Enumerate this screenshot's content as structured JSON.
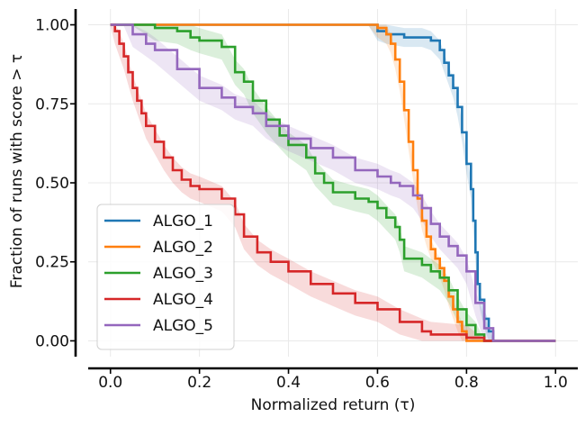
{
  "chart_data": {
    "type": "line",
    "title": "",
    "xlabel": "Normalized return (τ)",
    "ylabel": "Fraction of runs with score > τ",
    "xlim": [
      -0.05,
      1.05
    ],
    "ylim": [
      -0.05,
      1.05
    ],
    "xticks": [
      0.0,
      0.2,
      0.4,
      0.6,
      0.8,
      1.0
    ],
    "xtick_labels": [
      "0.0",
      "0.2",
      "0.4",
      "0.6",
      "0.8",
      "1.0"
    ],
    "yticks": [
      0.0,
      0.25,
      0.5,
      0.75,
      1.0
    ],
    "ytick_labels": [
      "0.00",
      "0.25",
      "0.50",
      "0.75",
      "1.00"
    ],
    "grid": true,
    "legend_position": "lower-left",
    "series": [
      {
        "name": "ALGO_1",
        "color": "#1f77b4",
        "x": [
          0.0,
          0.58,
          0.6,
          0.62,
          0.66,
          0.7,
          0.72,
          0.74,
          0.75,
          0.76,
          0.77,
          0.78,
          0.79,
          0.8,
          0.81,
          0.815,
          0.82,
          0.825,
          0.83,
          0.84,
          0.85,
          0.86,
          1.0
        ],
        "y": [
          1.0,
          1.0,
          0.98,
          0.97,
          0.96,
          0.96,
          0.95,
          0.92,
          0.88,
          0.84,
          0.8,
          0.74,
          0.66,
          0.56,
          0.48,
          0.38,
          0.28,
          0.18,
          0.13,
          0.07,
          0.03,
          0.0,
          0.0
        ],
        "band_halfwidth": 0.03
      },
      {
        "name": "ALGO_2",
        "color": "#ff7f0e",
        "x": [
          0.0,
          0.58,
          0.6,
          0.62,
          0.63,
          0.64,
          0.65,
          0.66,
          0.67,
          0.68,
          0.69,
          0.7,
          0.71,
          0.72,
          0.73,
          0.74,
          0.75,
          0.76,
          0.77,
          0.78,
          0.79,
          0.8,
          1.0
        ],
        "y": [
          1.0,
          1.0,
          0.99,
          0.97,
          0.94,
          0.89,
          0.82,
          0.73,
          0.63,
          0.54,
          0.45,
          0.38,
          0.33,
          0.29,
          0.26,
          0.23,
          0.19,
          0.14,
          0.1,
          0.06,
          0.03,
          0.0,
          0.0
        ],
        "band_halfwidth": 0.03
      },
      {
        "name": "ALGO_3",
        "color": "#2ca02c",
        "x": [
          0.0,
          0.05,
          0.1,
          0.15,
          0.18,
          0.2,
          0.25,
          0.28,
          0.3,
          0.32,
          0.35,
          0.38,
          0.4,
          0.44,
          0.46,
          0.48,
          0.5,
          0.55,
          0.58,
          0.6,
          0.62,
          0.64,
          0.65,
          0.66,
          0.7,
          0.72,
          0.74,
          0.76,
          0.78,
          0.8,
          0.82,
          0.84,
          1.0
        ],
        "y": [
          1.0,
          1.0,
          0.99,
          0.98,
          0.96,
          0.95,
          0.93,
          0.85,
          0.82,
          0.76,
          0.7,
          0.65,
          0.62,
          0.58,
          0.53,
          0.5,
          0.47,
          0.45,
          0.44,
          0.42,
          0.39,
          0.36,
          0.32,
          0.26,
          0.24,
          0.22,
          0.2,
          0.16,
          0.1,
          0.05,
          0.02,
          0.0,
          0.0
        ],
        "band_halfwidth": 0.04
      },
      {
        "name": "ALGO_4",
        "color": "#d62728",
        "x": [
          0.0,
          0.01,
          0.02,
          0.03,
          0.04,
          0.05,
          0.06,
          0.07,
          0.08,
          0.1,
          0.12,
          0.14,
          0.16,
          0.18,
          0.2,
          0.25,
          0.28,
          0.3,
          0.33,
          0.36,
          0.4,
          0.45,
          0.5,
          0.55,
          0.6,
          0.65,
          0.7,
          0.72,
          0.8,
          0.84,
          1.0
        ],
        "y": [
          1.0,
          0.98,
          0.94,
          0.9,
          0.85,
          0.8,
          0.76,
          0.72,
          0.68,
          0.63,
          0.58,
          0.54,
          0.51,
          0.49,
          0.48,
          0.45,
          0.4,
          0.33,
          0.28,
          0.25,
          0.22,
          0.18,
          0.15,
          0.12,
          0.1,
          0.06,
          0.03,
          0.02,
          0.01,
          0.0,
          0.0
        ],
        "band_halfwidth": 0.04
      },
      {
        "name": "ALGO_5",
        "color": "#9467bd",
        "x": [
          0.0,
          0.03,
          0.05,
          0.08,
          0.1,
          0.15,
          0.2,
          0.25,
          0.28,
          0.32,
          0.35,
          0.4,
          0.45,
          0.5,
          0.55,
          0.6,
          0.63,
          0.65,
          0.68,
          0.7,
          0.72,
          0.74,
          0.76,
          0.78,
          0.8,
          0.82,
          0.84,
          0.86,
          1.0
        ],
        "y": [
          1.0,
          1.0,
          0.97,
          0.94,
          0.92,
          0.86,
          0.8,
          0.77,
          0.74,
          0.72,
          0.68,
          0.64,
          0.61,
          0.58,
          0.54,
          0.52,
          0.5,
          0.49,
          0.46,
          0.42,
          0.37,
          0.33,
          0.3,
          0.27,
          0.22,
          0.12,
          0.04,
          0.0,
          0.0
        ],
        "band_halfwidth": 0.04
      }
    ]
  }
}
